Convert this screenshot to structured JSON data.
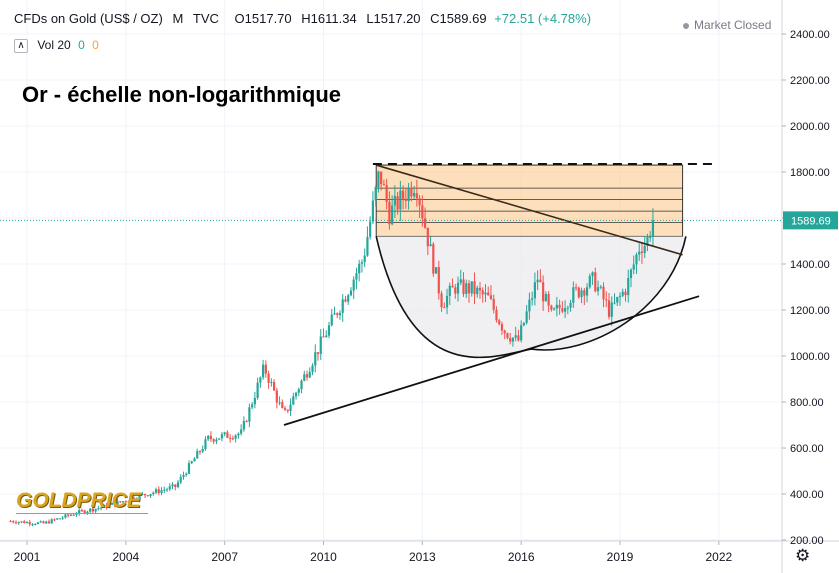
{
  "header": {
    "symbol": "CFDs on Gold (US$ / OZ)",
    "interval": "M",
    "source": "TVC",
    "open": "O1517.70",
    "high": "H1611.34",
    "low": "L1517.20",
    "close": "C1589.69",
    "change": "+72.51 (+4.78%)"
  },
  "volume": {
    "toggle": "∧",
    "label": "Vol 20",
    "value1": "0",
    "value2": "0"
  },
  "status": "Market Closed",
  "price_label": "1589.69",
  "logo_text": "GOLDPRICE",
  "colors": {
    "up": "#26a69a",
    "down": "#ef5350",
    "box": "#fbc98e",
    "price_line": "#26a69a"
  },
  "chart_data": {
    "type": "candlestick",
    "title": "Or - échelle non-logarithmique",
    "x_ticks": [
      "2001",
      "2004",
      "2007",
      "2010",
      "2013",
      "2016",
      "2019",
      "2022"
    ],
    "y_ticks": [
      "200.00",
      "400.00",
      "600.00",
      "800.00",
      "1000.00",
      "1200.00",
      "1400.00",
      "1600.00",
      "1800.00",
      "2000.00",
      "2200.00",
      "2400.00"
    ],
    "xlim": [
      2000.5,
      2023.5
    ],
    "ylim": [
      195,
      2450
    ],
    "last_price": 1589.69,
    "monthly_close_anchors": [
      [
        2000.5,
        282
      ],
      [
        2001.5,
        272
      ],
      [
        2002.5,
        318
      ],
      [
        2003.5,
        350
      ],
      [
        2004.5,
        395
      ],
      [
        2005.5,
        432
      ],
      [
        2006.5,
        640
      ],
      [
        2007.5,
        665
      ],
      [
        2008.2,
        950
      ],
      [
        2008.8,
        740
      ],
      [
        2009.5,
        935
      ],
      [
        2010.5,
        1220
      ],
      [
        2011.2,
        1420
      ],
      [
        2011.7,
        1800
      ],
      [
        2012.0,
        1620
      ],
      [
        2012.8,
        1760
      ],
      [
        2013.3,
        1420
      ],
      [
        2013.6,
        1230
      ],
      [
        2014.0,
        1300
      ],
      [
        2014.5,
        1290
      ],
      [
        2015.0,
        1250
      ],
      [
        2015.5,
        1110
      ],
      [
        2015.9,
        1060
      ],
      [
        2016.5,
        1340
      ],
      [
        2016.9,
        1170
      ],
      [
        2017.5,
        1260
      ],
      [
        2018.2,
        1330
      ],
      [
        2018.7,
        1190
      ],
      [
        2019.2,
        1300
      ],
      [
        2019.6,
        1480
      ],
      [
        2019.8,
        1490
      ],
      [
        2020.0,
        1589.69
      ]
    ],
    "annotations": {
      "resistance_zone": {
        "x": [
          2011.6,
          2020.9
        ],
        "y": [
          1520,
          1830
        ],
        "levels": [
          1520,
          1580,
          1630,
          1680,
          1730,
          1830
        ]
      },
      "dashed_top": {
        "x": [
          2011.5,
          2021.9
        ],
        "y": 1835
      },
      "downtrend": [
        [
          2011.6,
          1830
        ],
        [
          2020.9,
          1440
        ]
      ],
      "uptrend": [
        [
          2008.8,
          700
        ],
        [
          2021.4,
          1260
        ]
      ],
      "cup_bottom": {
        "x": 2016.3,
        "y": 1030
      },
      "cup_left_top": {
        "x": 2011.6,
        "y": 1520
      },
      "cup_right_top": {
        "x": 2021.0,
        "y": 1520
      }
    }
  }
}
